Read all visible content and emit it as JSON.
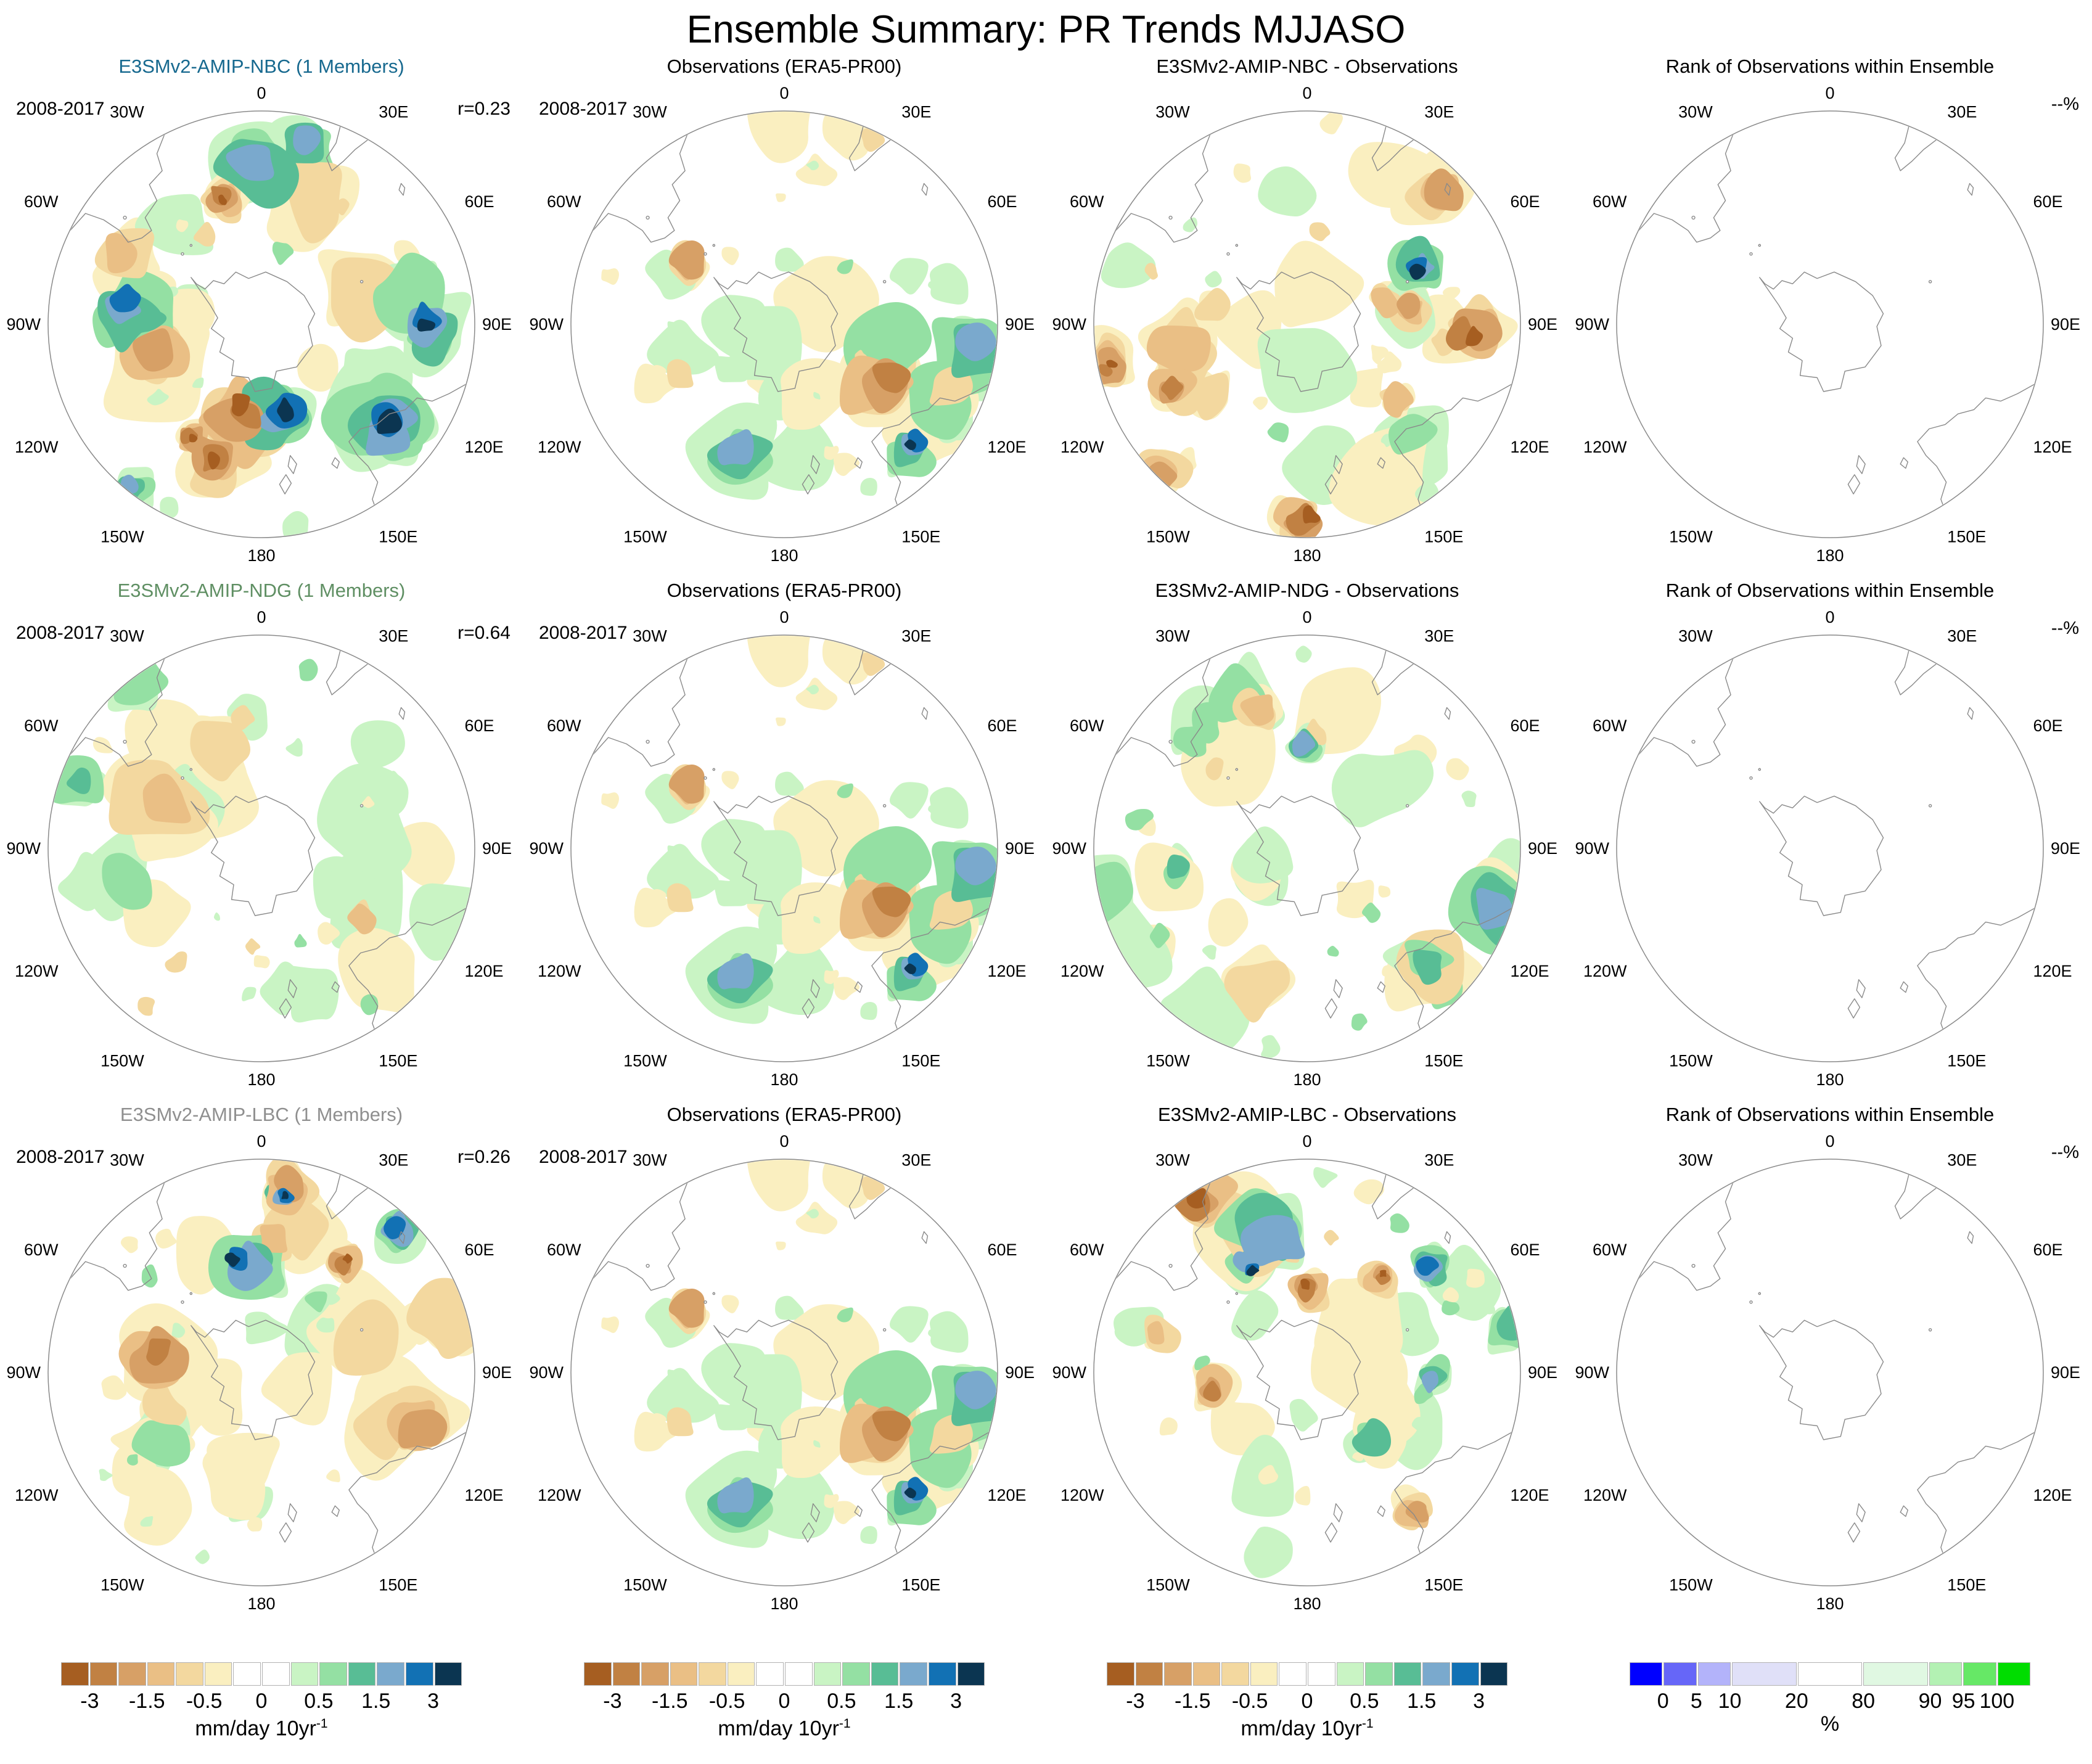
{
  "figure": {
    "title": "Ensemble Summary: PR Trends MJJASO"
  },
  "rows": [
    {
      "model_label": "E3SMv2-AMIP-NBC (1 Members)",
      "model_color": "#17698f",
      "period": "2008-2017",
      "r_label": "r=0.23",
      "obs_label": "Observations (ERA5-PR00)",
      "diff_label": "E3SMv2-AMIP-NBC - Observations",
      "rank_label": "Rank of Observations within Ensemble",
      "rank_value_label": "--%"
    },
    {
      "model_label": "E3SMv2-AMIP-NDG (1 Members)",
      "model_color": "#5f8f63",
      "period": "2008-2017",
      "r_label": "r=0.64",
      "obs_label": "Observations (ERA5-PR00)",
      "diff_label": "E3SMv2-AMIP-NDG - Observations",
      "rank_label": "Rank of Observations within Ensemble",
      "rank_value_label": "--%"
    },
    {
      "model_label": "E3SMv2-AMIP-LBC (1 Members)",
      "model_color": "#8f8f8f",
      "period": "2008-2017",
      "r_label": "r=0.26",
      "obs_label": "Observations (ERA5-PR00)",
      "diff_label": "E3SMv2-AMIP-LBC - Observations",
      "rank_label": "Rank of Observations within Ensemble",
      "rank_value_label": "--%"
    }
  ],
  "map": {
    "lon_labels": [
      {
        "label": "0",
        "deg": 0
      },
      {
        "label": "30E",
        "deg": 30
      },
      {
        "label": "60E",
        "deg": 60
      },
      {
        "label": "90E",
        "deg": 90
      },
      {
        "label": "120E",
        "deg": 120
      },
      {
        "label": "150E",
        "deg": 150
      },
      {
        "label": "180",
        "deg": 180
      },
      {
        "label": "150W",
        "deg": 210
      },
      {
        "label": "120W",
        "deg": 240
      },
      {
        "label": "90W",
        "deg": 270
      },
      {
        "label": "60W",
        "deg": 300
      },
      {
        "label": "30W",
        "deg": 330
      }
    ]
  },
  "trend_colorbar": {
    "colors": [
      "#a65e21",
      "#c18143",
      "#d7a066",
      "#eabf85",
      "#f3d89f",
      "#faefc0",
      "#ffffff",
      "#ffffff",
      "#c9f4c4",
      "#94e0a3",
      "#58bd95",
      "#7aa9cd",
      "#1271b4",
      "#0b3551"
    ],
    "segment_widths": [
      1,
      1,
      1,
      1,
      1,
      1,
      1,
      1,
      1,
      1,
      1,
      1,
      1,
      1
    ],
    "tick_labels": [
      "-3",
      "-1.5",
      "-0.5",
      "0",
      "0.5",
      "1.5",
      "3"
    ],
    "tick_boundaries": [
      1,
      3,
      5,
      7,
      9,
      11,
      13
    ],
    "unit": "mm/day 10yr",
    "unit_superscript": "-1"
  },
  "rank_colorbar": {
    "colors": [
      "#0000ff",
      "#6666f8",
      "#b3b3fa",
      "#e0e0f8",
      "#ffffff",
      "#e0f8e2",
      "#b3f1b3",
      "#66e866",
      "#00dd00"
    ],
    "segment_widths": [
      1,
      1,
      1,
      2,
      2,
      2,
      1,
      1,
      1
    ],
    "tick_labels": [
      "0",
      "5",
      "10",
      "20",
      "80",
      "90",
      "95",
      "100"
    ],
    "tick_boundaries": [
      1,
      2,
      3,
      4,
      5,
      6,
      7,
      8
    ],
    "unit": "%"
  },
  "chart_data": {
    "type": "heatmap",
    "title": "Ensemble Summary: PR Trends MJJASO",
    "description": "3x4 grid of Southern Hemisphere polar stereographic maps of precipitation trends for MJJASO 2008-2017: model ensemble trend, ERA5-PR00 observed trend, model-minus-observations difference, and rank of observations within ensemble (blank, single-member ensembles).",
    "projection": "south polar stereographic",
    "period": "2008-2017",
    "season": "MJJASO",
    "pattern_correlations": {
      "E3SMv2-AMIP-NBC": 0.23,
      "E3SMv2-AMIP-NDG": 0.64,
      "E3SMv2-AMIP-LBC": 0.26
    },
    "panels": [
      {
        "row": 1,
        "col": 1,
        "title": "E3SMv2-AMIP-NBC (1 Members)",
        "annotations": [
          "2008-2017",
          "r=0.23"
        ]
      },
      {
        "row": 1,
        "col": 2,
        "title": "Observations (ERA5-PR00)",
        "annotations": [
          "2008-2017"
        ]
      },
      {
        "row": 1,
        "col": 3,
        "title": "E3SMv2-AMIP-NBC - Observations",
        "annotations": []
      },
      {
        "row": 1,
        "col": 4,
        "title": "Rank of Observations within Ensemble",
        "annotations": [
          "--%"
        ]
      },
      {
        "row": 2,
        "col": 1,
        "title": "E3SMv2-AMIP-NDG (1 Members)",
        "annotations": [
          "2008-2017",
          "r=0.64"
        ]
      },
      {
        "row": 2,
        "col": 2,
        "title": "Observations (ERA5-PR00)",
        "annotations": [
          "2008-2017"
        ]
      },
      {
        "row": 2,
        "col": 3,
        "title": "E3SMv2-AMIP-NDG - Observations",
        "annotations": []
      },
      {
        "row": 2,
        "col": 4,
        "title": "Rank of Observations within Ensemble",
        "annotations": [
          "--%"
        ]
      },
      {
        "row": 3,
        "col": 1,
        "title": "E3SMv2-AMIP-LBC (1 Members)",
        "annotations": [
          "2008-2017",
          "r=0.26"
        ]
      },
      {
        "row": 3,
        "col": 2,
        "title": "Observations (ERA5-PR00)",
        "annotations": [
          "2008-2017"
        ]
      },
      {
        "row": 3,
        "col": 3,
        "title": "E3SMv2-AMIP-LBC - Observations",
        "annotations": []
      },
      {
        "row": 3,
        "col": 4,
        "title": "Rank of Observations within Ensemble",
        "annotations": [
          "--%"
        ]
      }
    ],
    "trend_color_scale": {
      "labeled_levels": [
        -3,
        -1.5,
        -0.5,
        0,
        0.5,
        1.5,
        3
      ],
      "n_segments": 14,
      "unit": "mm/day 10yr^-1"
    },
    "rank_color_scale": {
      "labeled_levels": [
        0,
        5,
        10,
        20,
        80,
        90,
        95,
        100
      ],
      "unit": "%"
    }
  }
}
